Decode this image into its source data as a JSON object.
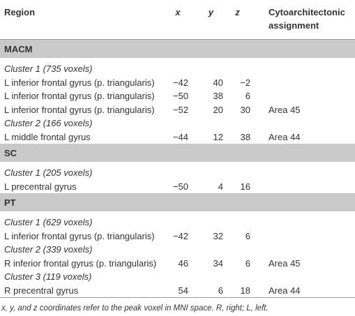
{
  "header": {
    "columns": [
      "Region",
      "x",
      "y",
      "z",
      "Cytoarchitectonic assignment"
    ]
  },
  "sections": [
    {
      "title": "MACM",
      "clusters": [
        {
          "label": "Cluster 1 (735 voxels)",
          "rows": [
            {
              "region": "L inferior frontal gyrus (p. triangularis)",
              "x": "−42",
              "y": "40",
              "z": "−2"
            },
            {
              "region": "L inferior frontal gyrus (p. triangularis)",
              "x": "−50",
              "y": "38",
              "z": "6"
            },
            {
              "region": "L inferior frontal gyrus (p. triangularis)",
              "x": "−52",
              "y": "20",
              "z": "30",
              "area": "Area 45"
            }
          ]
        },
        {
          "label": "Cluster 2 (166 voxels)",
          "rows": [
            {
              "region": "L middle frontal gyrus",
              "x": "−44",
              "y": "12",
              "z": "38",
              "area": "Area 44"
            }
          ]
        }
      ]
    },
    {
      "title": "SC",
      "clusters": [
        {
          "label": "Cluster 1 (205 voxels)",
          "rows": [
            {
              "region": "L precentral gyrus",
              "x": "−50",
              "y": "4",
              "z": "16"
            }
          ]
        }
      ]
    },
    {
      "title": "PT",
      "clusters": [
        {
          "label": "Cluster 1 (629 voxels)",
          "rows": [
            {
              "region": "L inferior frontal gyrus (p. triangularis)",
              "x": "−42",
              "y": "32",
              "z": "6"
            }
          ]
        },
        {
          "label": "Cluster 2 (339 voxels)",
          "rows": [
            {
              "region": "R inferior frontal gyrus (p. triangularis)",
              "x": "46",
              "y": "34",
              "z": "6",
              "area": "Area 45"
            }
          ]
        },
        {
          "label": "Cluster 3 (119 voxels)",
          "rows": [
            {
              "region": "R precentral gyrus",
              "x": "54",
              "y": "6",
              "z": "18",
              "area": "Area 44"
            }
          ]
        }
      ]
    }
  ],
  "footnote": "x, y, and z coordinates refer to the peak voxel in MNI space. R, right; L, left."
}
